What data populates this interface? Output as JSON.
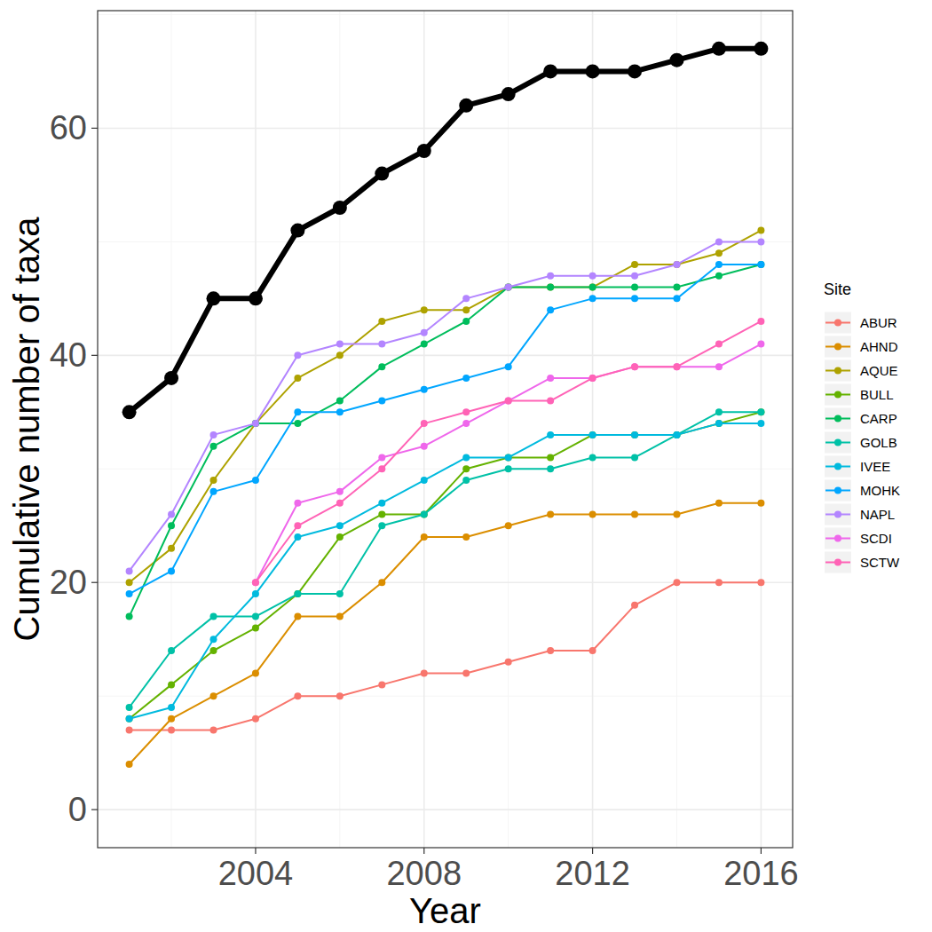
{
  "chart_data": {
    "type": "line",
    "x_label": "Year",
    "y_label": "Cumulative number of taxa",
    "legend_title": "Site",
    "legend": "right",
    "grid": true,
    "marker": "circle",
    "x": [
      2001,
      2002,
      2003,
      2004,
      2005,
      2006,
      2007,
      2008,
      2009,
      2010,
      2011,
      2012,
      2013,
      2014,
      2015,
      2016
    ],
    "xlim": [
      2000.25,
      2016.75
    ],
    "xticks": [
      2004,
      2008,
      2012,
      2016
    ],
    "ylim": [
      -3.35,
      70.35
    ],
    "yticks": [
      0,
      20,
      40,
      60
    ],
    "series": [
      {
        "color": "#000000",
        "values": [
          35,
          38,
          45,
          45,
          51,
          53,
          56,
          58,
          62,
          63,
          65,
          65,
          65,
          66,
          67,
          67
        ]
      },
      {
        "name": "ABUR",
        "color": "#F8766D",
        "values": [
          7,
          7,
          7,
          8,
          10,
          10,
          11,
          12,
          12,
          13,
          14,
          14,
          18,
          20,
          20,
          20
        ]
      },
      {
        "name": "AHND",
        "color": "#DB8E00",
        "values": [
          4,
          8,
          10,
          12,
          17,
          17,
          20,
          24,
          24,
          25,
          26,
          26,
          26,
          26,
          27,
          27
        ]
      },
      {
        "name": "AQUE",
        "color": "#AEA200",
        "values": [
          20,
          23,
          29,
          34,
          38,
          40,
          43,
          44,
          44,
          46,
          46,
          46,
          48,
          48,
          49,
          51
        ]
      },
      {
        "name": "BULL",
        "color": "#64B200",
        "values": [
          8,
          11,
          14,
          16,
          19,
          24,
          26,
          26,
          30,
          31,
          31,
          33,
          33,
          33,
          34,
          35
        ]
      },
      {
        "name": "CARP",
        "color": "#00BD5C",
        "values": [
          17,
          25,
          32,
          34,
          34,
          36,
          39,
          41,
          43,
          46,
          46,
          46,
          46,
          46,
          47,
          48
        ]
      },
      {
        "name": "GOLB",
        "color": "#00C1A7",
        "values": [
          9,
          14,
          17,
          17,
          19,
          19,
          25,
          26,
          29,
          30,
          30,
          31,
          31,
          33,
          35,
          35
        ]
      },
      {
        "name": "IVEE",
        "color": "#00BADE",
        "values": [
          8,
          9,
          15,
          19,
          24,
          25,
          27,
          29,
          31,
          31,
          33,
          33,
          33,
          33,
          34,
          34
        ]
      },
      {
        "name": "MOHK",
        "color": "#00A6FF",
        "values": [
          19,
          21,
          28,
          29,
          35,
          35,
          36,
          37,
          38,
          39,
          44,
          45,
          45,
          45,
          48,
          48
        ]
      },
      {
        "name": "NAPL",
        "color": "#B385FF",
        "values": [
          21,
          26,
          33,
          34,
          40,
          41,
          41,
          42,
          45,
          46,
          47,
          47,
          47,
          48,
          50,
          50
        ]
      },
      {
        "name": "SCDI",
        "color": "#EF67EB",
        "values": [
          null,
          null,
          null,
          20,
          27,
          28,
          31,
          32,
          34,
          36,
          38,
          38,
          39,
          39,
          39,
          41
        ]
      },
      {
        "name": "SCTW",
        "color": "#FF63B6",
        "values": [
          null,
          null,
          null,
          20,
          25,
          27,
          30,
          34,
          35,
          36,
          36,
          38,
          39,
          39,
          41,
          43
        ]
      }
    ]
  }
}
